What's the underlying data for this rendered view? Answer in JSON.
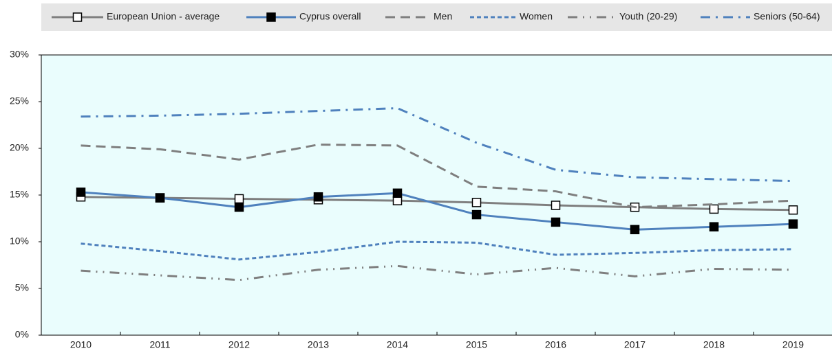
{
  "chart_data": {
    "type": "line",
    "categories": [
      "2010",
      "2011",
      "2012",
      "2013",
      "2014",
      "2015",
      "2016",
      "2017",
      "2018",
      "2019"
    ],
    "series": [
      {
        "name": "European Union - average",
        "color": "#7f7f7f",
        "dash": "solid",
        "marker": "open-square",
        "values": [
          14.8,
          14.7,
          14.6,
          14.5,
          14.4,
          14.2,
          13.9,
          13.7,
          13.5,
          13.4
        ]
      },
      {
        "name": "Cyprus overall",
        "color": "#4f81bd",
        "dash": "solid",
        "marker": "filled-square",
        "values": [
          15.3,
          14.7,
          13.7,
          14.8,
          15.2,
          12.9,
          12.1,
          11.3,
          11.6,
          11.9
        ]
      },
      {
        "name": "Men",
        "color": "#7f7f7f",
        "dash": "dashed",
        "values": [
          20.3,
          19.9,
          18.8,
          20.4,
          20.3,
          15.9,
          15.4,
          13.7,
          14.0,
          14.4
        ]
      },
      {
        "name": "Women",
        "color": "#4f81bd",
        "dash": "short-dash",
        "values": [
          9.8,
          9.0,
          8.1,
          8.9,
          10.0,
          9.9,
          8.6,
          8.8,
          9.1,
          9.2
        ]
      },
      {
        "name": "Youth (20-29)",
        "color": "#7f7f7f",
        "dash": "dash-dot-dot",
        "values": [
          6.9,
          6.4,
          5.9,
          7.0,
          7.4,
          6.5,
          7.2,
          6.3,
          7.1,
          7.0
        ]
      },
      {
        "name": "Seniors (50-64)",
        "color": "#4f81bd",
        "dash": "dash-dot",
        "values": [
          23.4,
          23.5,
          23.7,
          24.0,
          24.3,
          20.6,
          17.7,
          16.9,
          16.7,
          16.5
        ]
      }
    ],
    "ylim": [
      0,
      30
    ],
    "yticks": [
      {
        "value": 0,
        "label": "0%"
      },
      {
        "value": 5,
        "label": "5%"
      },
      {
        "value": 10,
        "label": "10%"
      },
      {
        "value": 15,
        "label": "15%"
      },
      {
        "value": 20,
        "label": "20%"
      },
      {
        "value": 25,
        "label": "25%"
      },
      {
        "value": 30,
        "label": "30%"
      }
    ],
    "legend": "top"
  }
}
